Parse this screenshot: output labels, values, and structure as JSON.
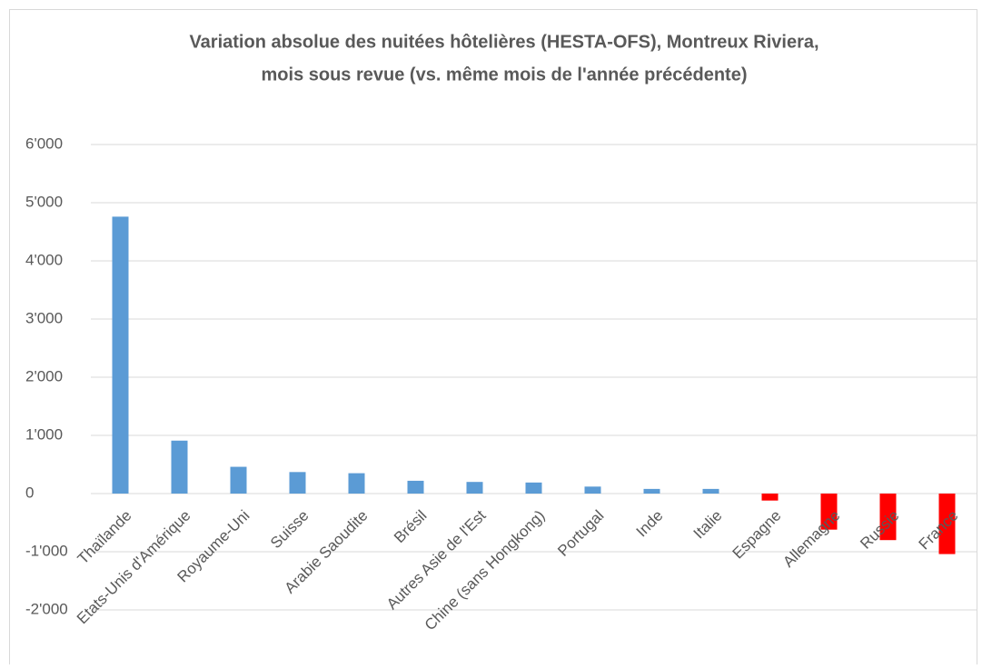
{
  "chart_data": {
    "type": "bar",
    "title": [
      "Variation absolue des nuitées hôtelières (HESTA-OFS), Montreux Riviera,",
      "mois sous revue (vs. même mois de l'année précédente)"
    ],
    "categories": [
      "Thaïlande",
      "Etats-Unis d'Amérique",
      "Royaume-Uni",
      "Suisse",
      "Arabie Saoudite",
      "Brésil",
      "Autres Asie de l'Est",
      "Chine (sans Hongkong)",
      "Portugal",
      "Inde",
      "Italie",
      "Espagne",
      "Allemagne",
      "Russie",
      "France"
    ],
    "values": [
      4760,
      910,
      460,
      370,
      350,
      220,
      200,
      190,
      120,
      80,
      80,
      -120,
      -620,
      -800,
      -1040
    ],
    "colors": [
      "#5b9bd5",
      "#5b9bd5",
      "#5b9bd5",
      "#5b9bd5",
      "#5b9bd5",
      "#5b9bd5",
      "#5b9bd5",
      "#5b9bd5",
      "#5b9bd5",
      "#5b9bd5",
      "#5b9bd5",
      "#ff0000",
      "#ff0000",
      "#ff0000",
      "#ff0000"
    ],
    "ylim": [
      -2000,
      6000
    ],
    "yticks": [
      {
        "value": -2000,
        "label": "-2'000"
      },
      {
        "value": -1000,
        "label": "-1'000"
      },
      0,
      {
        "value": 1000,
        "label": "1'000"
      },
      {
        "value": 2000,
        "label": "2'000"
      },
      {
        "value": 3000,
        "label": "3'000"
      },
      {
        "value": 4000,
        "label": "4'000"
      },
      {
        "value": 5000,
        "label": "5'000"
      },
      {
        "value": 6000,
        "label": "6'000"
      }
    ],
    "grid": true
  }
}
